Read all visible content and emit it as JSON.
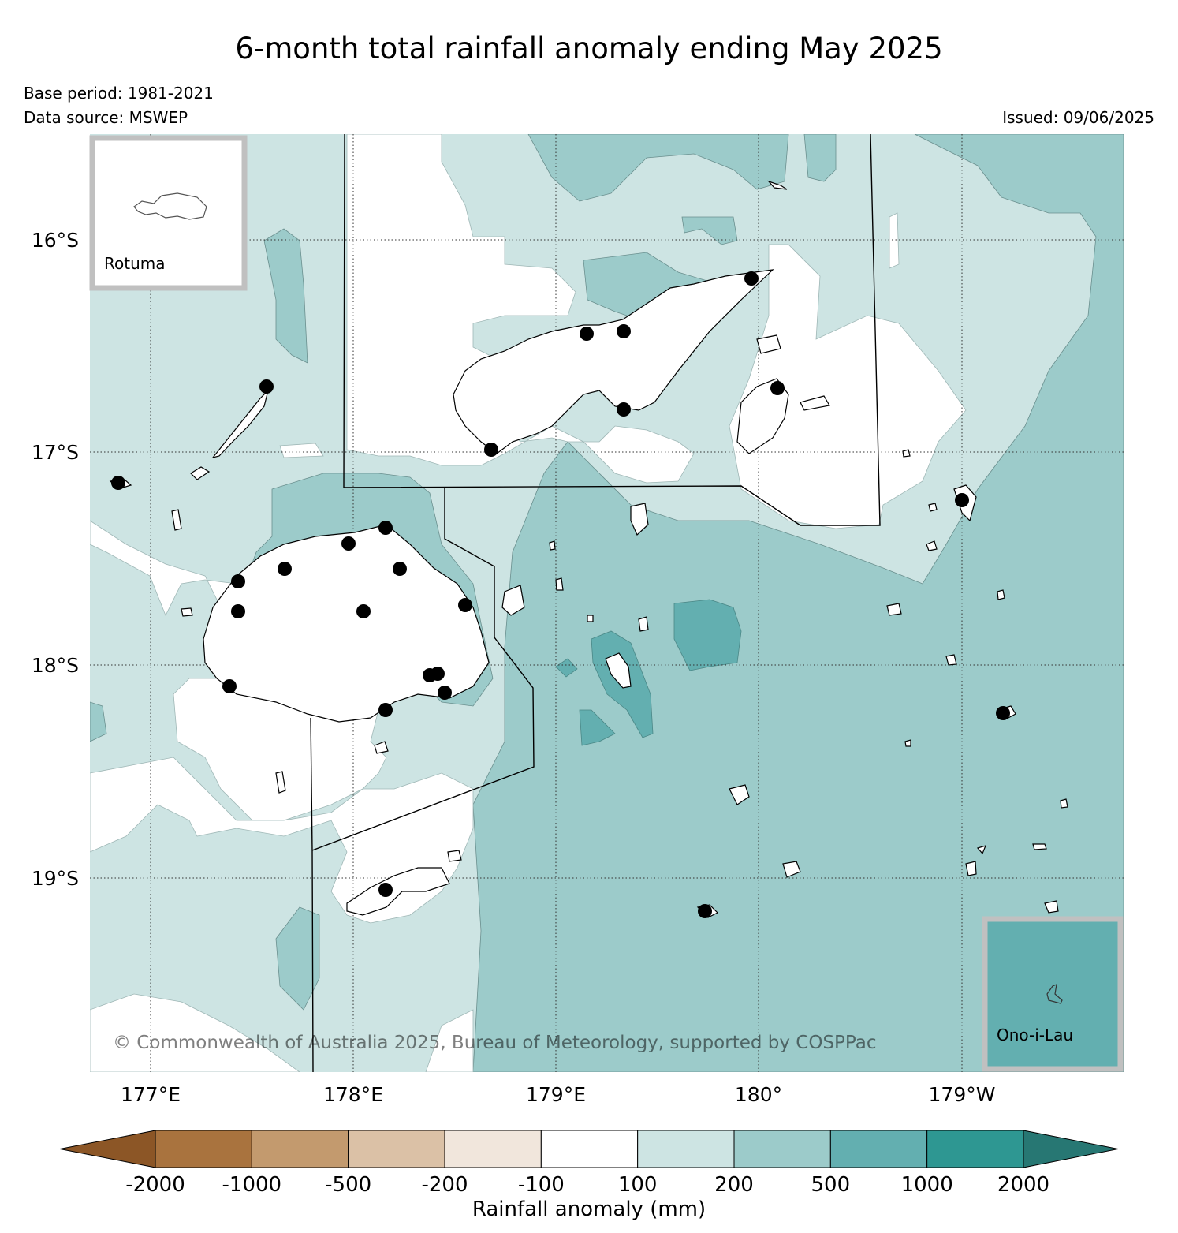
{
  "title": "6-month total rainfall anomaly ending May 2025",
  "base_period": "Base period: 1981-2021",
  "data_source": "Data source: MSWEP",
  "issued": "Issued: 09/06/2025",
  "copyright": "© Commonwealth of Australia 2025, Bureau of Meteorology, supported by COSPPac",
  "inset_rotuma": "Rotuma",
  "inset_onoilau": "Ono-i-Lau",
  "lat_labels": [
    "16°S",
    "17°S",
    "18°S",
    "19°S"
  ],
  "lon_labels": [
    "177°E",
    "178°E",
    "179°E",
    "180°",
    "179°W"
  ],
  "colorbar": {
    "label": "Rainfall anomaly (mm)",
    "ticks": [
      "-2000",
      "-1000",
      "-500",
      "-200",
      "-100",
      "100",
      "200",
      "500",
      "1000",
      "2000"
    ],
    "colors": [
      "#8c5626",
      "#a9733e",
      "#c39a6e",
      "#dbc1a6",
      "#f1e6dc",
      "#ffffff",
      "#cde4e3",
      "#9ccbca",
      "#63afb0",
      "#2e9792",
      "#277773"
    ]
  },
  "legend_colors": {
    "class_100_200": "#cde4e3",
    "class_200_500": "#9ccbca",
    "class_500_1000": "#63afb0",
    "class_neg200_neg100": "#f1e6dc",
    "class_neg500_neg200": "#dbc1a6",
    "class_neg1000_neg500": "#c39a6e"
  }
}
